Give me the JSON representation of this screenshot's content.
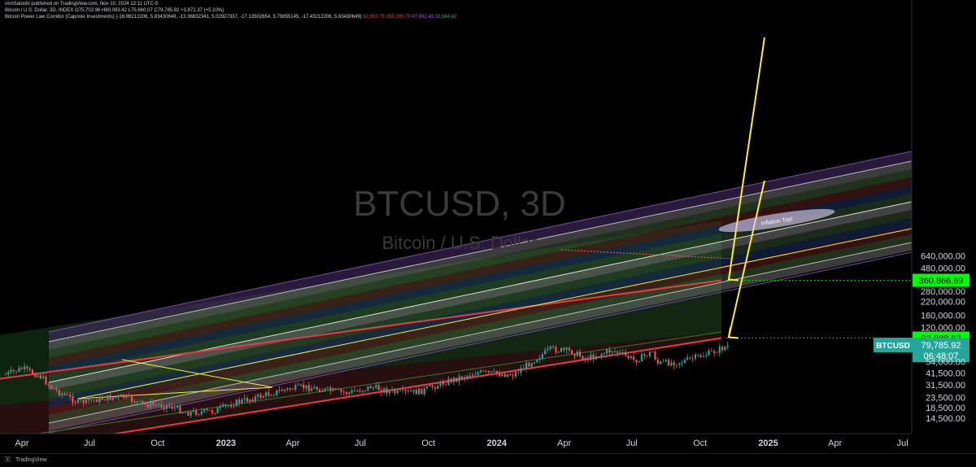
{
  "publisher": "IAmSatoshi published on TradingView.com, Nov 10, 2024 12:11 UTC-5",
  "legend": {
    "main_line": "Bitcoin / U.S. Dollar, 3D, INDEX  O75,702.96  H80,083.42  L75,660.07  C79,785.92  +3,872.37 (+5.10%)",
    "indicator_name": "Bitcoin Power Law Corridor (Capriole Investments) (-16.98212206, 5.83430649, -13.36632341, 5.02927337, -17.13502654, 5.79855145, -17.43212206, 5.83430649)",
    "indicator_values": [
      {
        "text": "92,902.75",
        "color": "#f23645"
      },
      {
        "text": "359,193.79",
        "color": "#f23645"
      },
      {
        "text": "47,992.43",
        "color": "#b24bf3"
      },
      {
        "text": "32,984.42",
        "color": "#22ab94"
      }
    ]
  },
  "watermark": {
    "symbol": "BTCUSD, 3D",
    "name": "Bitcoin / U.S. Dollar"
  },
  "annotation": "Inflation Top!",
  "price_axis": {
    "ticks": [
      "640,000.00",
      "480,000.00",
      "360,866.69",
      "280,000.00",
      "220,000.00",
      "160,000.00",
      "120,000.00",
      "93,888.62",
      "79,785.92",
      "54,000.00",
      "41,500.00",
      "31,500.00",
      "23,500.00",
      "18,500.00",
      "14,500.00"
    ],
    "highlight_upper": {
      "label": "360,866.69",
      "color": "#00ff00"
    },
    "highlight_lower": {
      "label": "93,888.62",
      "color": "#00ff00"
    },
    "current": {
      "symbol": "BTCUSD",
      "price": "79,785.92",
      "countdown": "06:48:07",
      "color": "#26a69a"
    }
  },
  "time_axis": {
    "labels": [
      "Apr",
      "Jul",
      "Oct",
      "2023",
      "Apr",
      "Jul",
      "Oct",
      "2024",
      "Apr",
      "Jul",
      "Oct",
      "2025",
      "Apr",
      "Jul"
    ],
    "bold": [
      "2023",
      "2024",
      "2025"
    ]
  },
  "footer": {
    "brand": "TradingView"
  },
  "colors": {
    "outer_band": "#f23645",
    "fair_value": "#ffeb3b",
    "up_candle": "#26a69a",
    "down_candle": "#ef5350",
    "arrow": "#ffeb3b"
  },
  "chart_data": {
    "type": "candlestick",
    "title": "BTCUSD, 3D",
    "scale": "log",
    "ylim": [
      13000,
      800000
    ],
    "x_range": [
      "2022-03-01",
      "2025-08-31"
    ],
    "close_path": [
      {
        "date": "2022-03-10",
        "close": 40000
      },
      {
        "date": "2022-04-01",
        "close": 46000
      },
      {
        "date": "2022-04-25",
        "close": 39000
      },
      {
        "date": "2022-05-12",
        "close": 29000
      },
      {
        "date": "2022-06-15",
        "close": 21000
      },
      {
        "date": "2022-07-20",
        "close": 23000
      },
      {
        "date": "2022-08-15",
        "close": 24000
      },
      {
        "date": "2022-09-10",
        "close": 20000
      },
      {
        "date": "2022-10-15",
        "close": 19500
      },
      {
        "date": "2022-11-09",
        "close": 16500
      },
      {
        "date": "2022-12-15",
        "close": 17000
      },
      {
        "date": "2023-01-15",
        "close": 21000
      },
      {
        "date": "2023-02-15",
        "close": 24000
      },
      {
        "date": "2023-03-20",
        "close": 28000
      },
      {
        "date": "2023-04-15",
        "close": 30000
      },
      {
        "date": "2023-06-15",
        "close": 26000
      },
      {
        "date": "2023-07-15",
        "close": 30000
      },
      {
        "date": "2023-08-20",
        "close": 26000
      },
      {
        "date": "2023-09-20",
        "close": 27000
      },
      {
        "date": "2023-10-25",
        "close": 34000
      },
      {
        "date": "2023-12-05",
        "close": 42000
      },
      {
        "date": "2024-01-23",
        "close": 40000
      },
      {
        "date": "2024-02-28",
        "close": 62000
      },
      {
        "date": "2024-03-14",
        "close": 72000
      },
      {
        "date": "2024-04-10",
        "close": 69000
      },
      {
        "date": "2024-05-01",
        "close": 58000
      },
      {
        "date": "2024-06-05",
        "close": 71000
      },
      {
        "date": "2024-07-05",
        "close": 56000
      },
      {
        "date": "2024-07-29",
        "close": 68000
      },
      {
        "date": "2024-08-05",
        "close": 52000
      },
      {
        "date": "2024-09-06",
        "close": 54000
      },
      {
        "date": "2024-10-15",
        "close": 66000
      },
      {
        "date": "2024-11-10",
        "close": 79785.92
      }
    ],
    "power_law_bands": {
      "outer_upper_at_end": 360866.69,
      "outer_lower_at_end": 93888.62
    }
  }
}
